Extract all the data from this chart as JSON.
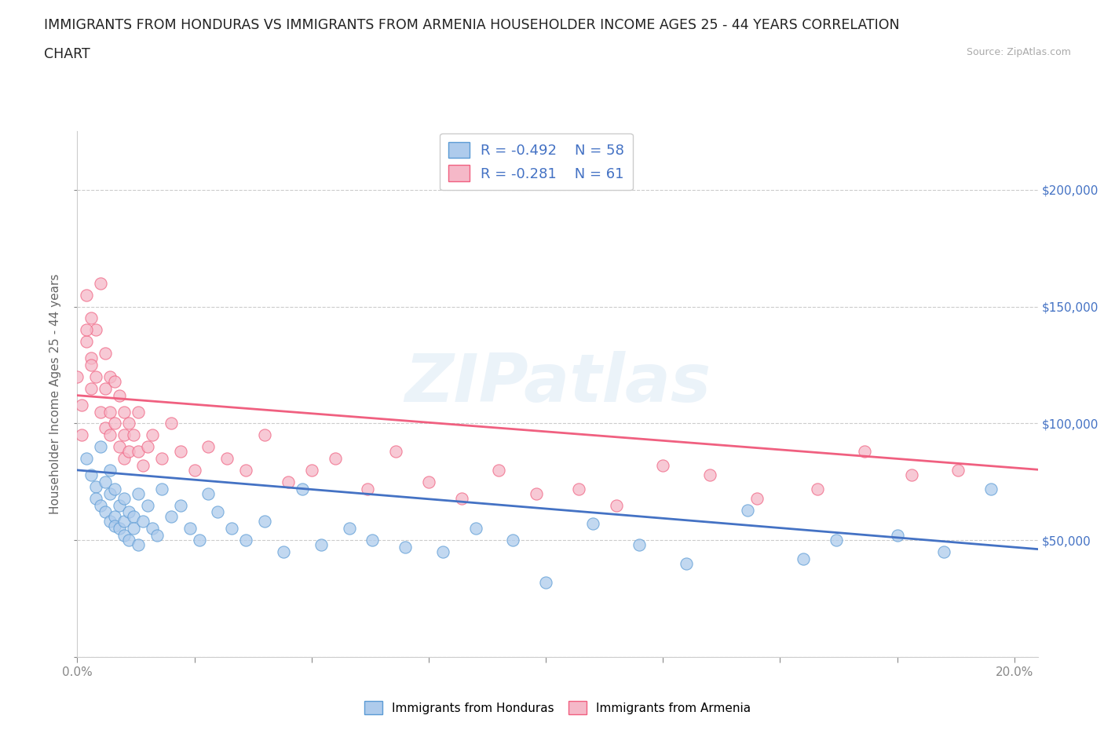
{
  "title_line1": "IMMIGRANTS FROM HONDURAS VS IMMIGRANTS FROM ARMENIA HOUSEHOLDER INCOME AGES 25 - 44 YEARS CORRELATION",
  "title_line2": "CHART",
  "source": "Source: ZipAtlas.com",
  "ylabel": "Householder Income Ages 25 - 44 years",
  "xlim": [
    0.0,
    0.205
  ],
  "ylim": [
    0,
    225000
  ],
  "yticks": [
    0,
    50000,
    100000,
    150000,
    200000
  ],
  "ytick_labels_right": [
    "",
    "$50,000",
    "$100,000",
    "$150,000",
    "$200,000"
  ],
  "xticks": [
    0.0,
    0.025,
    0.05,
    0.075,
    0.1,
    0.125,
    0.15,
    0.175,
    0.2
  ],
  "xtick_labels": [
    "0.0%",
    "",
    "",
    "",
    "",
    "",
    "",
    "",
    "20.0%"
  ],
  "watermark": "ZIPatlas",
  "legend_R_honduras": "-0.492",
  "legend_N_honduras": "58",
  "legend_R_armenia": "-0.281",
  "legend_N_armenia": "61",
  "color_honduras_fill": "#aecbec",
  "color_armenia_fill": "#f5b8c8",
  "color_honduras_edge": "#5b9bd5",
  "color_armenia_edge": "#f06080",
  "color_line_honduras": "#4472c4",
  "color_line_armenia": "#f06080",
  "color_text_blue": "#4472c4",
  "color_text_pink": "#f06080",
  "hon_intercept": 80000,
  "hon_slope": -165000,
  "arm_intercept": 112000,
  "arm_slope": -155000,
  "honduras_x": [
    0.002,
    0.003,
    0.004,
    0.004,
    0.005,
    0.005,
    0.006,
    0.006,
    0.007,
    0.007,
    0.007,
    0.008,
    0.008,
    0.008,
    0.009,
    0.009,
    0.01,
    0.01,
    0.01,
    0.011,
    0.011,
    0.012,
    0.012,
    0.013,
    0.013,
    0.014,
    0.015,
    0.016,
    0.017,
    0.018,
    0.02,
    0.022,
    0.024,
    0.026,
    0.028,
    0.03,
    0.033,
    0.036,
    0.04,
    0.044,
    0.048,
    0.052,
    0.058,
    0.063,
    0.07,
    0.078,
    0.085,
    0.093,
    0.1,
    0.11,
    0.12,
    0.13,
    0.143,
    0.155,
    0.162,
    0.175,
    0.185,
    0.195
  ],
  "honduras_y": [
    85000,
    78000,
    73000,
    68000,
    90000,
    65000,
    75000,
    62000,
    80000,
    70000,
    58000,
    72000,
    60000,
    56000,
    65000,
    55000,
    68000,
    58000,
    52000,
    62000,
    50000,
    60000,
    55000,
    70000,
    48000,
    58000,
    65000,
    55000,
    52000,
    72000,
    60000,
    65000,
    55000,
    50000,
    70000,
    62000,
    55000,
    50000,
    58000,
    45000,
    72000,
    48000,
    55000,
    50000,
    47000,
    45000,
    55000,
    50000,
    32000,
    57000,
    48000,
    40000,
    63000,
    42000,
    50000,
    52000,
    45000,
    72000
  ],
  "armenia_x": [
    0.002,
    0.002,
    0.003,
    0.003,
    0.003,
    0.004,
    0.004,
    0.005,
    0.005,
    0.006,
    0.006,
    0.006,
    0.007,
    0.007,
    0.007,
    0.008,
    0.008,
    0.009,
    0.009,
    0.01,
    0.01,
    0.01,
    0.011,
    0.011,
    0.012,
    0.013,
    0.013,
    0.014,
    0.015,
    0.016,
    0.018,
    0.02,
    0.022,
    0.025,
    0.028,
    0.032,
    0.036,
    0.04,
    0.045,
    0.05,
    0.055,
    0.062,
    0.068,
    0.075,
    0.082,
    0.09,
    0.098,
    0.107,
    0.115,
    0.125,
    0.135,
    0.145,
    0.158,
    0.168,
    0.178,
    0.188,
    0.0,
    0.001,
    0.001,
    0.002,
    0.003
  ],
  "armenia_y": [
    135000,
    155000,
    145000,
    128000,
    115000,
    140000,
    120000,
    160000,
    105000,
    130000,
    115000,
    98000,
    120000,
    105000,
    95000,
    118000,
    100000,
    112000,
    90000,
    105000,
    95000,
    85000,
    100000,
    88000,
    95000,
    88000,
    105000,
    82000,
    90000,
    95000,
    85000,
    100000,
    88000,
    80000,
    90000,
    85000,
    80000,
    95000,
    75000,
    80000,
    85000,
    72000,
    88000,
    75000,
    68000,
    80000,
    70000,
    72000,
    65000,
    82000,
    78000,
    68000,
    72000,
    88000,
    78000,
    80000,
    120000,
    108000,
    95000,
    140000,
    125000
  ]
}
